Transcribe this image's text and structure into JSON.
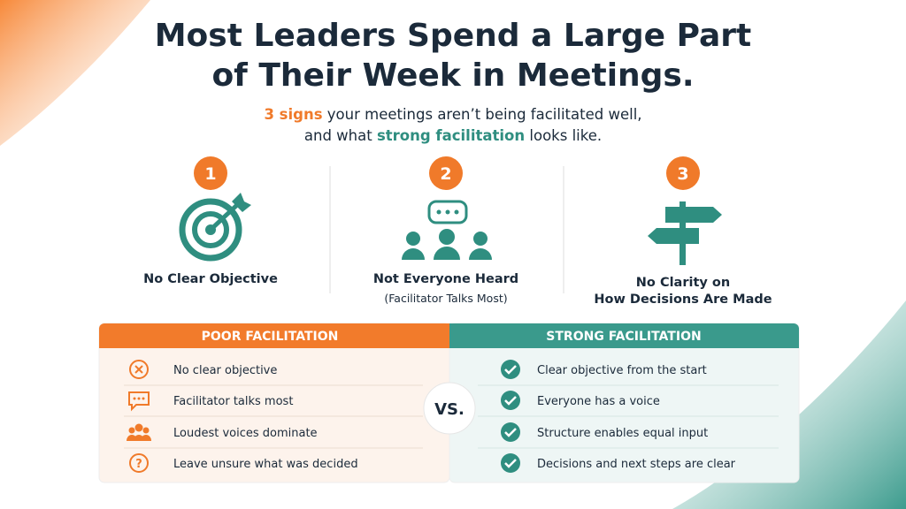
{
  "title": [
    "Most Leaders Spend a Large Part",
    "of Their Week in Meetings."
  ],
  "subtitle": [
    [
      "3 signs",
      " your meetings aren’t being facilitated well,"
    ],
    [
      "and what ",
      "strong facilitation",
      " looks like."
    ]
  ],
  "signs": [
    {
      "number": "1",
      "label": [
        "No Clear Objective"
      ]
    },
    {
      "number": "2",
      "label": [
        "Not Everyone Heard"
      ],
      "note": "(Facilitator Talks Most)"
    },
    {
      "number": "3",
      "label": [
        "No Clarity on",
        "How Decisions Are Made"
      ]
    }
  ],
  "comparison": {
    "poor": {
      "header": "POOR FACILITATION",
      "items": [
        "No clear objective",
        "Facilitator talks most",
        "Loudest voices dominate",
        "Leave unsure what was decided"
      ]
    },
    "strong": {
      "header": "STRONG FACILITATION",
      "items": [
        "Clear objective from the start",
        "Everyone has a voice",
        "Structure enables equal input",
        "Decisions and next steps are clear"
      ]
    },
    "vs": "VS."
  }
}
